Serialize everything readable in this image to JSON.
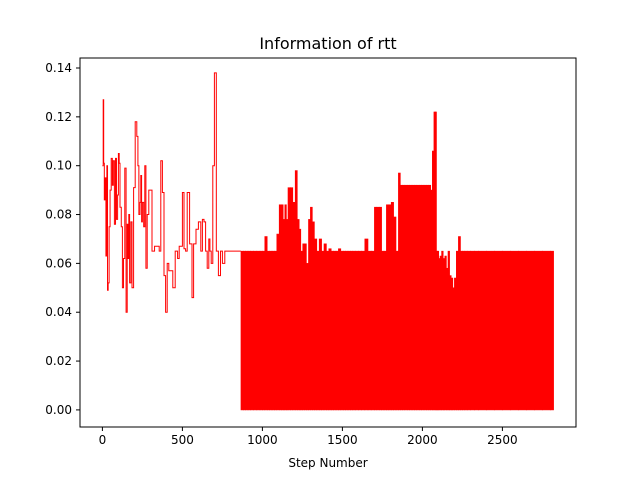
{
  "chart_data": {
    "type": "line",
    "title": "Information of rtt",
    "xlabel": "Step Number",
    "ylabel": "",
    "xlim": [
      -140,
      2960
    ],
    "ylim": [
      -0.007,
      0.1441
    ],
    "xticks": [
      0,
      500,
      1000,
      1500,
      2000,
      2500
    ],
    "xtick_labels": [
      "0",
      "500",
      "1000",
      "1500",
      "2000",
      "2500"
    ],
    "yticks": [
      0.0,
      0.02,
      0.04,
      0.06,
      0.08,
      0.1,
      0.12,
      0.14
    ],
    "ytick_labels": [
      "0.00",
      "0.02",
      "0.04",
      "0.06",
      "0.08",
      "0.10",
      "0.12",
      "0.14"
    ],
    "grid": false,
    "line_color": "#ff0000",
    "series": [
      {
        "x": [
          0,
          5,
          8,
          12,
          18,
          22,
          28,
          32,
          36,
          42,
          48,
          55,
          62,
          68,
          75,
          82,
          88,
          95,
          100,
          105,
          110,
          118,
          125,
          132,
          140,
          148,
          155,
          160,
          165,
          170,
          178,
          185,
          195,
          205,
          215,
          222,
          228,
          235,
          240,
          245,
          250,
          258,
          265,
          272,
          280,
          290,
          300,
          305,
          310,
          318,
          326,
          335,
          345,
          355,
          365,
          375,
          385,
          395,
          405,
          415,
          425,
          440,
          455,
          470,
          480,
          490,
          500,
          510,
          520,
          530,
          545,
          560,
          570,
          585,
          600,
          615,
          625,
          635,
          645,
          655,
          665,
          672,
          680,
          690,
          700,
          712,
          725,
          738,
          750,
          765,
          780,
          795,
          810,
          822,
          830,
          835,
          840,
          845,
          850,
          858,
          865
        ],
        "y": [
          0.1,
          0.127,
          0.101,
          0.086,
          0.095,
          0.063,
          0.1,
          0.049,
          0.052,
          0.075,
          0.09,
          0.103,
          0.092,
          0.102,
          0.076,
          0.103,
          0.078,
          0.088,
          0.105,
          0.101,
          0.083,
          0.075,
          0.05,
          0.062,
          0.099,
          0.04,
          0.076,
          0.062,
          0.08,
          0.052,
          0.077,
          0.05,
          0.091,
          0.118,
          0.112,
          0.1,
          0.08,
          0.085,
          0.096,
          0.077,
          0.085,
          0.075,
          0.1,
          0.058,
          0.08,
          0.09,
          0.09,
          0.09,
          0.065,
          0.065,
          0.067,
          0.067,
          0.067,
          0.065,
          0.102,
          0.089,
          0.055,
          0.04,
          0.06,
          0.057,
          0.057,
          0.05,
          0.065,
          0.062,
          0.067,
          0.067,
          0.089,
          0.066,
          0.065,
          0.089,
          0.068,
          0.046,
          0.068,
          0.074,
          0.077,
          0.065,
          0.078,
          0.077,
          0.065,
          0.058,
          0.07,
          0.065,
          0.06,
          0.1,
          0.138,
          0.065,
          0.055,
          0.065,
          0.06,
          0.065,
          0.065,
          0.065,
          0.065,
          0.065,
          0.065,
          0.065,
          0.065,
          0.065,
          0.065,
          0.065,
          0.065
        ]
      },
      {
        "x": [
          866,
          882,
          895,
          910,
          925,
          945,
          965,
          985,
          1000,
          1015,
          1030,
          1045,
          1060,
          1075,
          1090,
          1105,
          1118,
          1130,
          1140,
          1150,
          1160,
          1175,
          1190,
          1205,
          1218,
          1230,
          1240,
          1252,
          1262,
          1275,
          1288,
          1300,
          1312,
          1325,
          1340,
          1355,
          1370,
          1385,
          1400,
          1415,
          1430,
          1445,
          1460,
          1475,
          1490,
          1505,
          1520,
          1535,
          1550,
          1565,
          1580,
          1600,
          1620,
          1640,
          1660,
          1680,
          1700,
          1715,
          1730,
          1745,
          1760,
          1775,
          1790,
          1805,
          1820,
          1835,
          1850,
          1862,
          1875,
          1890,
          1905,
          1920,
          1935,
          1950,
          1965,
          1980,
          1995,
          2010,
          2025,
          2040,
          2052,
          2062,
          2072,
          2080,
          2088,
          2095,
          2102,
          2110,
          2120,
          2130,
          2140,
          2150,
          2160,
          2170,
          2180,
          2190,
          2200,
          2212,
          2225,
          2238,
          2250,
          2265,
          2280,
          2300,
          2325,
          2350,
          2400,
          2450,
          2500,
          2550,
          2600,
          2650,
          2700,
          2750,
          2800,
          2820
        ],
        "lo": [
          0,
          0,
          0,
          0,
          0,
          0,
          0,
          0,
          0,
          0,
          0,
          0,
          0,
          0,
          0,
          0,
          0,
          0,
          0,
          0,
          0,
          0,
          0,
          0,
          0,
          0,
          0,
          0,
          0,
          0,
          0,
          0,
          0,
          0,
          0,
          0,
          0,
          0,
          0,
          0,
          0,
          0,
          0,
          0,
          0,
          0,
          0,
          0,
          0,
          0,
          0,
          0,
          0,
          0,
          0,
          0,
          0,
          0,
          0,
          0,
          0,
          0,
          0,
          0,
          0,
          0,
          0,
          0,
          0,
          0,
          0,
          0,
          0,
          0,
          0,
          0,
          0,
          0,
          0,
          0,
          0,
          0,
          0,
          0,
          0,
          0,
          0,
          0,
          0,
          0,
          0,
          0,
          0,
          0,
          0,
          0,
          0,
          0,
          0,
          0,
          0,
          0,
          0,
          0,
          0,
          0,
          0,
          0,
          0,
          0,
          0,
          0,
          0,
          0,
          0,
          0
        ],
        "hi": [
          0.065,
          0.065,
          0.065,
          0.065,
          0.065,
          0.065,
          0.065,
          0.065,
          0.065,
          0.071,
          0.065,
          0.065,
          0.065,
          0.065,
          0.072,
          0.084,
          0.084,
          0.078,
          0.084,
          0.078,
          0.091,
          0.091,
          0.085,
          0.098,
          0.078,
          0.074,
          0.065,
          0.068,
          0.068,
          0.06,
          0.078,
          0.083,
          0.077,
          0.07,
          0.065,
          0.07,
          0.065,
          0.068,
          0.065,
          0.066,
          0.065,
          0.065,
          0.065,
          0.066,
          0.065,
          0.065,
          0.065,
          0.065,
          0.065,
          0.065,
          0.065,
          0.065,
          0.065,
          0.07,
          0.065,
          0.065,
          0.083,
          0.083,
          0.083,
          0.065,
          0.065,
          0.084,
          0.084,
          0.085,
          0.079,
          0.065,
          0.097,
          0.092,
          0.092,
          0.092,
          0.092,
          0.092,
          0.092,
          0.092,
          0.092,
          0.092,
          0.092,
          0.092,
          0.092,
          0.092,
          0.09,
          0.106,
          0.122,
          0.122,
          0.065,
          0.065,
          0.062,
          0.063,
          0.065,
          0.062,
          0.063,
          0.058,
          0.065,
          0.055,
          0.054,
          0.05,
          0.054,
          0.065,
          0.071,
          0.065,
          0.065,
          0.065,
          0.065,
          0.065,
          0.065,
          0.065,
          0.065,
          0.065,
          0.065,
          0.065,
          0.065,
          0.065,
          0.065,
          0.065,
          0.065,
          0.065
        ]
      }
    ]
  }
}
